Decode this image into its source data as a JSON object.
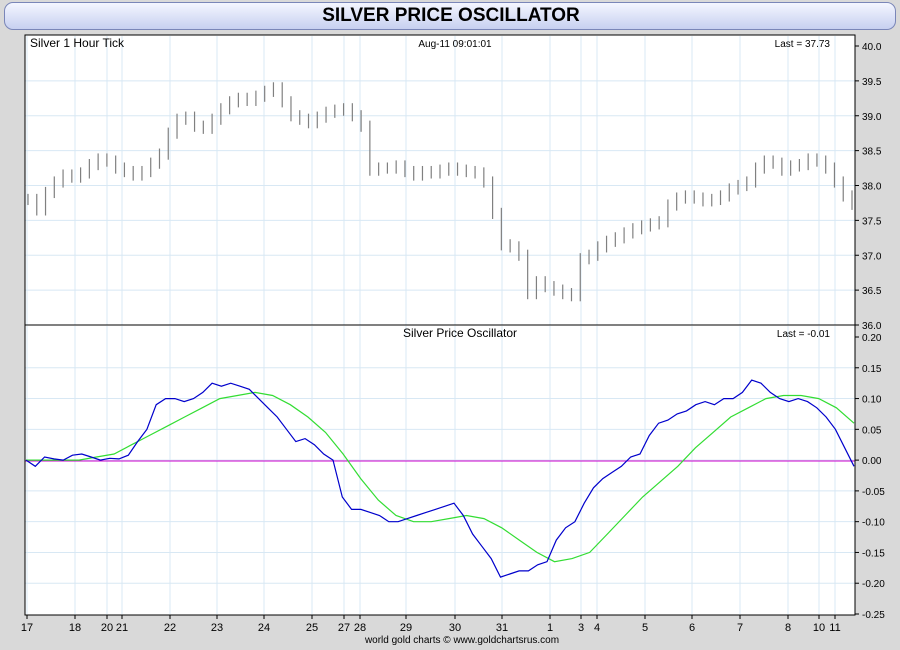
{
  "page_title": "SILVER PRICE OSCILLATOR",
  "footer": "world gold charts © www.goldchartsrus.com",
  "colors": {
    "price_bars": "#808080",
    "oscillator": "#0000cc",
    "signal": "#33dd33",
    "zero_line": "#cc00cc",
    "grid": "#d8e8f4"
  },
  "chart_data": [
    {
      "type": "line",
      "title": "Silver 1 Hour Tick",
      "timestamp": "Aug-11  09:01:01",
      "last_label": "Last = 37.73",
      "ylim": [
        36.0,
        40.0
      ],
      "yticks": [
        "40.0",
        "39.5",
        "39.0",
        "38.5",
        "38.0",
        "37.5",
        "37.0",
        "36.5",
        "36.0"
      ],
      "x_tick_labels": [
        "17",
        "18",
        "20",
        "21",
        "22",
        "23",
        "24",
        "25",
        "27",
        "28",
        "29",
        "30",
        "31",
        "1",
        "3",
        "4",
        "5",
        "6",
        "7",
        "8",
        "10",
        "11"
      ],
      "grid": true,
      "series": [
        {
          "values": [
            37.8,
            37.65,
            37.9,
            38.05,
            38.15,
            38.12,
            38.18,
            38.3,
            38.38,
            38.35,
            38.25,
            38.2,
            38.15,
            38.2,
            38.32,
            38.45,
            38.75,
            38.95,
            38.98,
            38.85,
            38.82,
            38.95,
            39.1,
            39.2,
            39.25,
            39.22,
            39.28,
            39.35,
            39.4,
            39.2,
            39.0,
            38.95,
            38.9,
            38.98,
            39.05,
            39.08,
            39.1,
            39.0,
            38.85,
            38.22,
            38.25,
            38.25,
            38.28,
            38.2,
            38.15,
            38.2,
            38.18,
            38.22,
            38.25,
            38.22,
            38.2,
            38.18,
            38.05,
            37.6,
            37.15,
            37.12,
            37.0,
            36.45,
            36.62,
            36.55,
            36.5,
            36.45,
            36.42,
            36.95,
            37.0,
            37.12,
            37.2,
            37.25,
            37.32,
            37.38,
            37.42,
            37.45,
            37.48,
            37.72,
            37.82,
            37.85,
            37.82,
            37.78,
            37.8,
            37.85,
            37.95,
            38.0,
            38.05,
            38.25,
            38.35,
            38.32,
            38.22,
            38.28,
            38.3,
            38.38,
            38.35,
            38.25,
            38.05,
            37.85,
            37.73
          ]
        }
      ]
    },
    {
      "type": "line",
      "title": "Silver Price Oscillator",
      "last_label": "Last = -0.01",
      "ylim": [
        -0.25,
        0.2
      ],
      "yticks": [
        "0.20",
        "0.15",
        "0.10",
        "0.05",
        "0.00",
        "-0.05",
        "-0.10",
        "-0.15",
        "-0.20",
        "-0.25"
      ],
      "x_tick_labels": [
        "17",
        "18",
        "20",
        "21",
        "22",
        "23",
        "24",
        "25",
        "27",
        "28",
        "29",
        "30",
        "31",
        "1",
        "3",
        "4",
        "5",
        "6",
        "7",
        "8",
        "10",
        "11"
      ],
      "grid": true,
      "series": [
        {
          "values": [
            0.0,
            -0.01,
            0.005,
            0.002,
            0.0,
            0.008,
            0.01,
            0.005,
            0.0,
            0.003,
            0.002,
            0.008,
            0.03,
            0.05,
            0.09,
            0.1,
            0.1,
            0.095,
            0.1,
            0.11,
            0.125,
            0.12,
            0.125,
            0.12,
            0.115,
            0.1,
            0.085,
            0.07,
            0.05,
            0.03,
            0.035,
            0.025,
            0.01,
            0.0,
            -0.06,
            -0.08,
            -0.08,
            -0.085,
            -0.09,
            -0.1,
            -0.1,
            -0.095,
            -0.09,
            -0.085,
            -0.08,
            -0.075,
            -0.07,
            -0.09,
            -0.12,
            -0.14,
            -0.16,
            -0.19,
            -0.185,
            -0.18,
            -0.18,
            -0.17,
            -0.165,
            -0.13,
            -0.11,
            -0.1,
            -0.07,
            -0.045,
            -0.03,
            -0.02,
            -0.01,
            0.005,
            0.01,
            0.04,
            0.06,
            0.065,
            0.075,
            0.08,
            0.09,
            0.095,
            0.09,
            0.1,
            0.1,
            0.11,
            0.13,
            0.125,
            0.11,
            0.1,
            0.095,
            0.1,
            0.095,
            0.085,
            0.07,
            0.05,
            0.02,
            -0.01
          ]
        },
        {
          "values": [
            0.0,
            0.0,
            0.0,
            0.0,
            0.005,
            0.01,
            0.025,
            0.04,
            0.055,
            0.07,
            0.085,
            0.1,
            0.105,
            0.11,
            0.105,
            0.09,
            0.07,
            0.045,
            0.01,
            -0.03,
            -0.065,
            -0.09,
            -0.1,
            -0.1,
            -0.095,
            -0.09,
            -0.095,
            -0.11,
            -0.13,
            -0.15,
            -0.165,
            -0.16,
            -0.15,
            -0.12,
            -0.09,
            -0.06,
            -0.035,
            -0.01,
            0.02,
            0.045,
            0.07,
            0.085,
            0.1,
            0.105,
            0.105,
            0.1,
            0.085,
            0.06
          ]
        }
      ]
    }
  ]
}
